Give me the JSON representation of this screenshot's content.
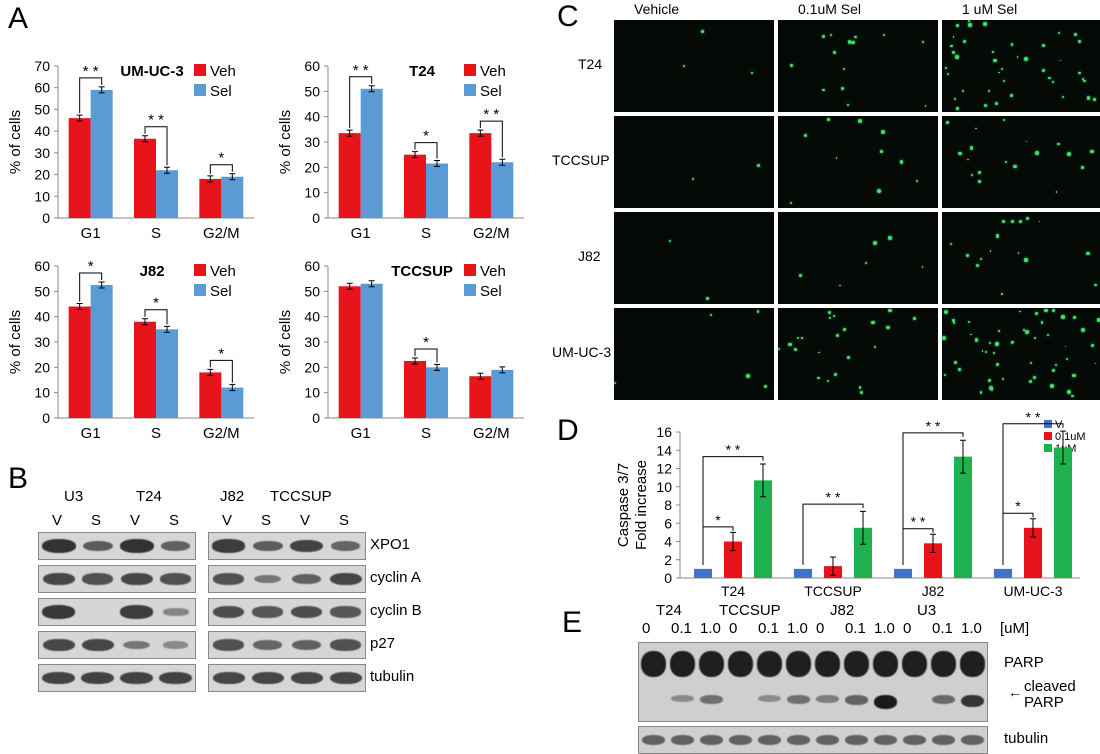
{
  "panels": {
    "A": "A",
    "B": "B",
    "C": "C",
    "D": "D",
    "E": "E"
  },
  "panelA": {
    "legend": [
      "Veh",
      "Sel"
    ],
    "colors": {
      "veh": "#e8141b",
      "sel": "#5b9bd5"
    },
    "ylabel": "% of cells",
    "categories": [
      "G1",
      "S",
      "G2/M"
    ],
    "charts": [
      {
        "title": "UM-UC-3",
        "yticks": [
          "0",
          "10",
          "20",
          "30",
          "40",
          "50",
          "60",
          "70"
        ],
        "ymax": 70,
        "veh": [
          46,
          36.5,
          18
        ],
        "sel": [
          59,
          22,
          19
        ],
        "sig": [
          {
            "cat": 0,
            "label": "* *"
          },
          {
            "cat": 1,
            "label": "* *"
          },
          {
            "cat": 2,
            "label": "*"
          }
        ]
      },
      {
        "title": "T24",
        "yticks": [
          "0",
          "10",
          "20",
          "30",
          "40",
          "50",
          "60"
        ],
        "ymax": 60,
        "veh": [
          33.5,
          25,
          33.5
        ],
        "sel": [
          51,
          21.5,
          22
        ],
        "sig": [
          {
            "cat": 0,
            "label": "* *"
          },
          {
            "cat": 1,
            "label": "*"
          },
          {
            "cat": 2,
            "label": "* *"
          }
        ]
      },
      {
        "title": "J82",
        "yticks": [
          "0",
          "10",
          "20",
          "30",
          "40",
          "50",
          "60"
        ],
        "ymax": 60,
        "veh": [
          44,
          38,
          18
        ],
        "sel": [
          52.5,
          35,
          12
        ],
        "sig": [
          {
            "cat": 0,
            "label": "*"
          },
          {
            "cat": 1,
            "label": "*"
          },
          {
            "cat": 2,
            "label": "*"
          }
        ]
      },
      {
        "title": "TCCSUP",
        "yticks": [
          "0",
          "10",
          "20",
          "30",
          "40",
          "50",
          "60"
        ],
        "ymax": 60,
        "veh": [
          52,
          22.5,
          16.5
        ],
        "sel": [
          53,
          20,
          19
        ],
        "sig": [
          {
            "cat": 1,
            "label": "*"
          }
        ]
      }
    ]
  },
  "panelB": {
    "left_groups": [
      "U3",
      "T24"
    ],
    "right_groups": [
      "J82",
      "TCCSUP"
    ],
    "lanes": [
      "V",
      "S",
      "V",
      "S"
    ],
    "proteins": [
      "XPO1",
      "cyclin A",
      "cyclin B",
      "p27",
      "tubulin"
    ]
  },
  "panelC": {
    "columns": [
      "Vehicle",
      "0.1uM Sel",
      "1 uM Sel"
    ],
    "rows": [
      "T24",
      "TCCSUP",
      "J82",
      "UM-UC-3"
    ]
  },
  "chart_data": {
    "type": "bar",
    "categories": [
      "T24",
      "TCCSUP",
      "J82",
      "UM-UC-3"
    ],
    "ylabel": "Caspase 3/7 Fold increase",
    "ylim": [
      0,
      16
    ],
    "yticks": [
      "0",
      "2",
      "4",
      "6",
      "8",
      "10",
      "12",
      "14",
      "16"
    ],
    "series": [
      {
        "name": "V",
        "color": "#4472c4",
        "values": [
          1,
          1,
          1,
          1
        ]
      },
      {
        "name": "0.1uM",
        "color": "#e8141b",
        "values": [
          4,
          1.3,
          3.8,
          5.5
        ]
      },
      {
        "name": "1uM",
        "color": "#1fb050",
        "values": [
          10.7,
          5.5,
          13.3,
          14.3
        ]
      }
    ],
    "sig": [
      {
        "cat": 0,
        "pair": [
          0,
          1
        ],
        "label": "*"
      },
      {
        "cat": 0,
        "pair": [
          0,
          2
        ],
        "label": "* *"
      },
      {
        "cat": 1,
        "pair": [
          0,
          2
        ],
        "label": "* *"
      },
      {
        "cat": 2,
        "pair": [
          0,
          1
        ],
        "label": "* *"
      },
      {
        "cat": 2,
        "pair": [
          0,
          2
        ],
        "label": "* *"
      },
      {
        "cat": 3,
        "pair": [
          0,
          1
        ],
        "label": "*"
      },
      {
        "cat": 3,
        "pair": [
          0,
          2
        ],
        "label": "* *"
      }
    ]
  },
  "panelE": {
    "cells": [
      "T24",
      "TCCSUP",
      "J82",
      "U3"
    ],
    "doses": [
      "0",
      "0.1",
      "1.0"
    ],
    "unit": "[uM]",
    "labels": {
      "parp": "PARP",
      "cleaved1": "cleaved",
      "cleaved2": "PARP",
      "tubulin": "tubulin"
    }
  }
}
